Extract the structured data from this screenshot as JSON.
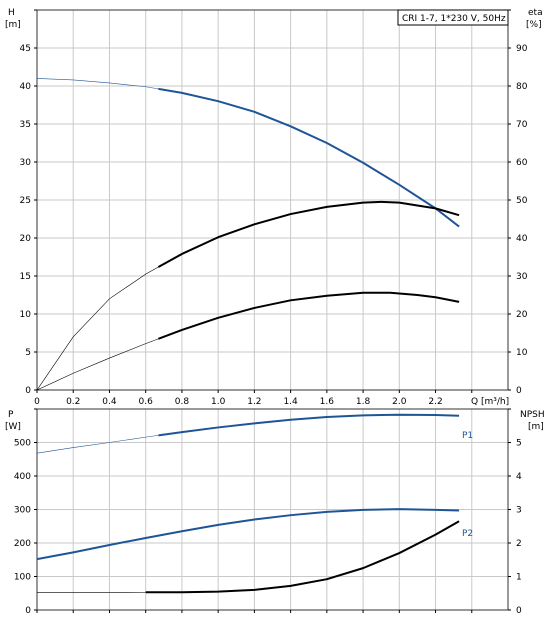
{
  "colors": {
    "blue": "#1f5597",
    "black": "#000000",
    "grid": "#c9c9c9"
  },
  "chart_data": [
    {
      "type": "line",
      "label": "CRI 1-7, 1*230 V, 50Hz",
      "x_axis": {
        "label": "Q [m³/h]",
        "ticks": [
          "0",
          "0.2",
          "0.4",
          "0.6",
          "0.8",
          "1.0",
          "1.2",
          "1.4",
          "1.6",
          "1.8",
          "2.0",
          "2.2"
        ],
        "range": [
          0,
          2.6
        ],
        "grid": true
      },
      "y_left": {
        "label_top": "H",
        "label_unit": "[m]",
        "ticks": [
          "0",
          "5",
          "10",
          "15",
          "20",
          "25",
          "30",
          "35",
          "40",
          "45"
        ],
        "range": [
          0,
          50
        ]
      },
      "y_right": {
        "label_top": "eta",
        "label_unit": "[%]",
        "ticks": [
          "0",
          "10",
          "20",
          "30",
          "40",
          "50",
          "60",
          "70",
          "80",
          "90"
        ],
        "range": [
          0,
          100
        ]
      },
      "series": [
        {
          "axis": "left",
          "color": "blue",
          "thin_until": 0.67,
          "points": [
            [
              0,
              41.0
            ],
            [
              0.2,
              40.8
            ],
            [
              0.4,
              40.4
            ],
            [
              0.6,
              39.9
            ],
            [
              0.8,
              39.1
            ],
            [
              1.0,
              38.0
            ],
            [
              1.2,
              36.6
            ],
            [
              1.4,
              34.7
            ],
            [
              1.6,
              32.5
            ],
            [
              1.8,
              29.9
            ],
            [
              2.0,
              27.0
            ],
            [
              2.2,
              23.9
            ],
            [
              2.33,
              21.5
            ]
          ]
        },
        {
          "axis": "right",
          "color": "black",
          "thin_until": 0.67,
          "points": [
            [
              0,
              0
            ],
            [
              0.2,
              14
            ],
            [
              0.4,
              24
            ],
            [
              0.6,
              30.5
            ],
            [
              0.8,
              35.8
            ],
            [
              1.0,
              40.2
            ],
            [
              1.2,
              43.6
            ],
            [
              1.4,
              46.3
            ],
            [
              1.6,
              48.2
            ],
            [
              1.8,
              49.3
            ],
            [
              1.9,
              49.5
            ],
            [
              2.0,
              49.3
            ],
            [
              2.2,
              47.8
            ],
            [
              2.33,
              46.0
            ]
          ]
        },
        {
          "axis": "left",
          "color": "black",
          "thin_until": 0.67,
          "points": [
            [
              0,
              0
            ],
            [
              0.2,
              2.2
            ],
            [
              0.4,
              4.2
            ],
            [
              0.6,
              6.1
            ],
            [
              0.8,
              7.9
            ],
            [
              1.0,
              9.5
            ],
            [
              1.2,
              10.8
            ],
            [
              1.4,
              11.8
            ],
            [
              1.6,
              12.4
            ],
            [
              1.8,
              12.8
            ],
            [
              1.95,
              12.8
            ],
            [
              2.1,
              12.5
            ],
            [
              2.2,
              12.2
            ],
            [
              2.33,
              11.6
            ]
          ]
        }
      ]
    },
    {
      "type": "line",
      "x_axis": {
        "range": [
          0,
          2.6
        ],
        "grid": true
      },
      "y_left": {
        "label_top": "P",
        "label_unit": "[W]",
        "ticks": [
          "0",
          "100",
          "200",
          "300",
          "400",
          "500"
        ],
        "range": [
          0,
          600
        ]
      },
      "y_right": {
        "label_top": "NPSH",
        "label_unit": "[m]",
        "ticks": [
          "0",
          "1",
          "2",
          "3",
          "4",
          "5"
        ],
        "range": [
          0,
          6
        ]
      },
      "series": [
        {
          "name": "P1",
          "axis": "left",
          "color": "blue",
          "thin_until": 0.67,
          "points": [
            [
              0,
              468
            ],
            [
              0.2,
              485
            ],
            [
              0.4,
              500
            ],
            [
              0.6,
              516
            ],
            [
              0.8,
              531
            ],
            [
              1.0,
              545
            ],
            [
              1.2,
              557
            ],
            [
              1.4,
              568
            ],
            [
              1.6,
              576
            ],
            [
              1.8,
              581
            ],
            [
              2.0,
              583
            ],
            [
              2.2,
              582
            ],
            [
              2.33,
              580
            ]
          ]
        },
        {
          "name": "P2",
          "axis": "left",
          "color": "blue",
          "thin_until": 0,
          "points": [
            [
              0,
              152
            ],
            [
              0.2,
              172
            ],
            [
              0.4,
              194
            ],
            [
              0.6,
              215
            ],
            [
              0.8,
              235
            ],
            [
              1.0,
              254
            ],
            [
              1.2,
              270
            ],
            [
              1.4,
              283
            ],
            [
              1.6,
              293
            ],
            [
              1.8,
              299
            ],
            [
              2.0,
              301
            ],
            [
              2.2,
              299
            ],
            [
              2.33,
              297
            ]
          ]
        },
        {
          "axis": "right",
          "color": "black",
          "thin_until": 0.6,
          "points": [
            [
              0,
              0.52
            ],
            [
              0.4,
              0.52
            ],
            [
              0.6,
              0.53
            ],
            [
              0.8,
              0.53
            ],
            [
              1.0,
              0.55
            ],
            [
              1.2,
              0.6
            ],
            [
              1.4,
              0.72
            ],
            [
              1.6,
              0.92
            ],
            [
              1.8,
              1.25
            ],
            [
              2.0,
              1.7
            ],
            [
              2.2,
              2.25
            ],
            [
              2.33,
              2.65
            ]
          ]
        }
      ]
    }
  ]
}
